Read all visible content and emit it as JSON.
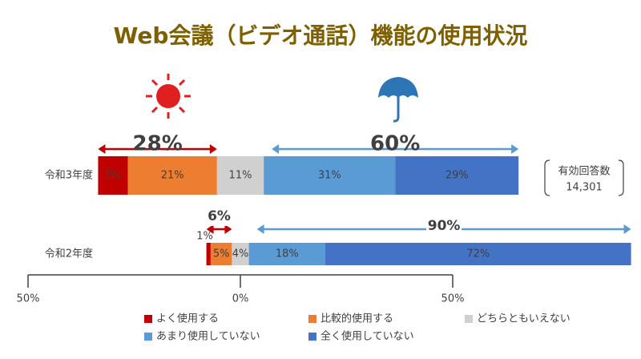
{
  "chart_data": {
    "type": "diverging-bar",
    "title": "Web会議（ビデオ通話）機能の使用状況",
    "categories": [
      "令和3年度",
      "令和2年度"
    ],
    "series": [
      {
        "name": "よく使用する",
        "color": "#c00000",
        "values": [
          7,
          1
        ],
        "value_labels": [
          "7%",
          "1%"
        ]
      },
      {
        "name": "比較的使用する",
        "color": "#ed7d31",
        "values": [
          21,
          5
        ],
        "value_labels": [
          "21%",
          "5%"
        ]
      },
      {
        "name": "どちらともいえない",
        "color": "#d0d0d0",
        "values": [
          11,
          4
        ],
        "value_labels": [
          "11%",
          "4%"
        ]
      },
      {
        "name": "あまり使用していない",
        "color": "#5b9bd5",
        "values": [
          31,
          18
        ],
        "value_labels": [
          "31%",
          "18%"
        ]
      },
      {
        "name": "全く使用していない",
        "color": "#4472c4",
        "values": [
          29,
          72
        ],
        "value_labels": [
          "29%",
          "72%"
        ]
      }
    ],
    "xlim": [
      -50,
      50
    ],
    "xticks": [
      {
        "value": -50,
        "label": "50%"
      },
      {
        "value": 0,
        "label": "0%"
      },
      {
        "value": 50,
        "label": "50%"
      }
    ],
    "annotations": [
      "28%",
      "60%",
      "6%",
      "90%"
    ],
    "note": {
      "label": "有効回答数",
      "value": "14,301"
    }
  }
}
